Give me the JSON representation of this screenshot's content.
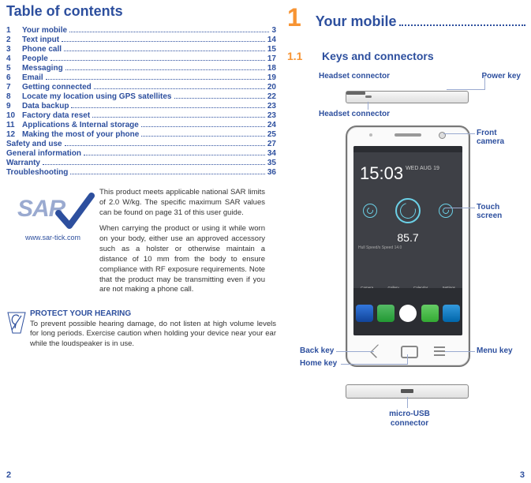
{
  "colors": {
    "brand_blue": "#2d4f9e",
    "accent_orange": "#f79433",
    "light_blue": "#9aaad0"
  },
  "left": {
    "title": "Table of contents",
    "toc": [
      {
        "num": "1",
        "text": "Your mobile",
        "page": "3"
      },
      {
        "num": "2",
        "text": "Text input",
        "page": "14"
      },
      {
        "num": "3",
        "text": "Phone call",
        "page": "15"
      },
      {
        "num": "4",
        "text": "People",
        "page": "17"
      },
      {
        "num": "5",
        "text": "Messaging",
        "page": "18"
      },
      {
        "num": "6",
        "text": "Email",
        "page": "19"
      },
      {
        "num": "7",
        "text": "Getting connected",
        "page": "20"
      },
      {
        "num": "8",
        "text": "Locate my location using GPS satellites",
        "page": "22"
      },
      {
        "num": "9",
        "text": "Data backup",
        "page": "23"
      },
      {
        "num": "10",
        "text": "Factory data reset ",
        "page": "23"
      },
      {
        "num": "11",
        "text": "Applications & Internal storage",
        "page": "24"
      },
      {
        "num": "12",
        "text": "Making the most of your phone",
        "page": "25"
      }
    ],
    "toc_tail": [
      {
        "text": "Safety and use",
        "page": "27"
      },
      {
        "text": "General information",
        "page": "34"
      },
      {
        "text": "Warranty",
        "page": "35"
      },
      {
        "text": "Troubleshooting",
        "page": "36"
      }
    ],
    "sar": {
      "logo_text": "SAR",
      "url": "www.sar-tick.com",
      "para1": "This product meets applicable national SAR limits of 2.0 W/kg. The specific maximum SAR values can be found on page 31 of this user guide.",
      "para2": "When carrying the product or using it while worn on your body, either use an approved accessory such as a holster or otherwise maintain a distance of 10 mm from the body to ensure compliance with RF exposure requirements. Note that the product may be transmitting even if you are not making a phone call."
    },
    "hearing": {
      "title": "PROTECT YOUR HEARING",
      "body": "To prevent possible hearing damage, do not listen at high volume levels for long periods. Exercise caution when holding your device near your ear while the loudspeaker is in use."
    },
    "page_number": "2"
  },
  "right": {
    "chapter_number": "1",
    "chapter_title": "Your mobile",
    "section_number": "1.1",
    "section_title": "Keys and connectors",
    "labels": {
      "power_key": "Power key",
      "headset_connector": "Headset connector",
      "front_camera": "Front camera",
      "touch_screen": "Touch screen",
      "back_key": "Back key",
      "home_key": "Home key",
      "menu_key": "Menu key",
      "micro_usb": "micro-USB connector"
    },
    "phone_ui": {
      "clock": "15:03",
      "clock_sub": "WED\nAUG 19",
      "big_number": "85.7",
      "sub_text": "Hull Speed/s\nSpeed 14.0",
      "app_labels": [
        "Camera",
        "Gallery",
        "Calendar",
        "Settings"
      ]
    },
    "page_number": "3"
  }
}
